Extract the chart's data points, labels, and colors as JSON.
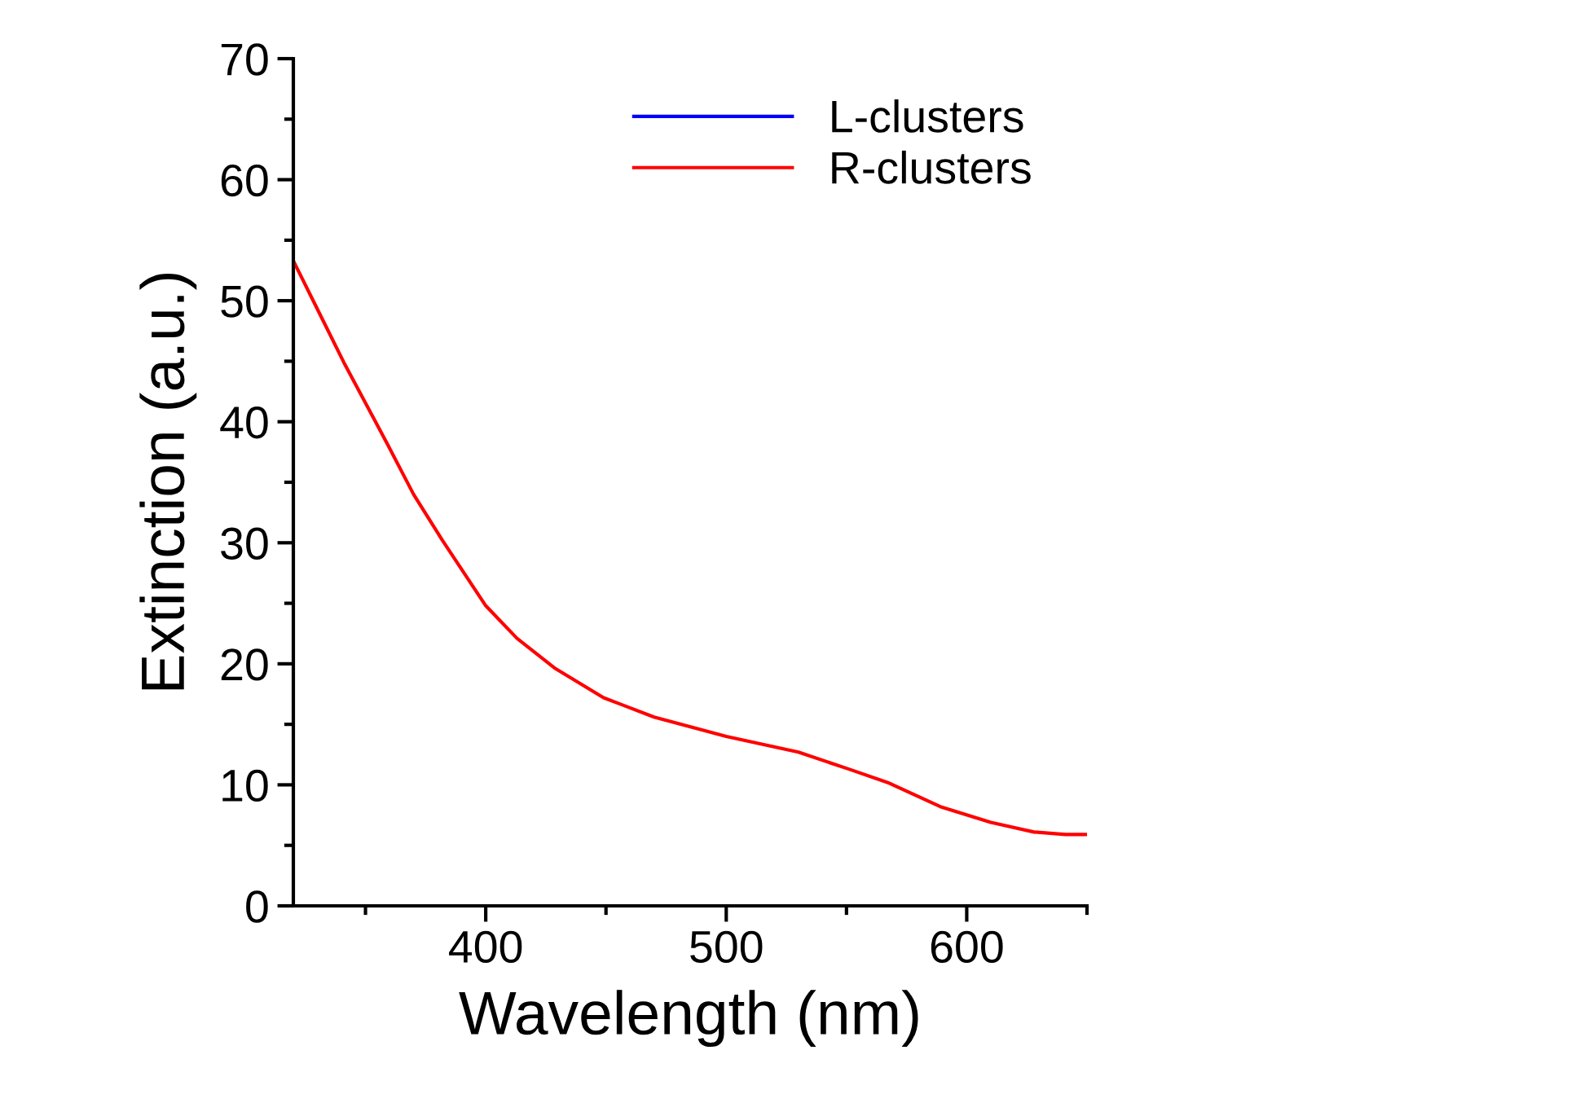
{
  "chart_data": {
    "type": "line",
    "xlabel": "Wavelength (nm)",
    "ylabel": "Extinction (a.u.)",
    "x": [
      320,
      330,
      341,
      359,
      370,
      382,
      400,
      413,
      429,
      449,
      470,
      500,
      530,
      551,
      567,
      589,
      610,
      628,
      641,
      650
    ],
    "series": [
      {
        "name": "L-clusters",
        "color": "#0000ff",
        "values": [
          null,
          null,
          null,
          null,
          null,
          null,
          null,
          null,
          null,
          null,
          null,
          null,
          null,
          null,
          null,
          null,
          null,
          null,
          null,
          null
        ]
      },
      {
        "name": "R-clusters",
        "color": "#ff0000",
        "values": [
          53.3,
          49.3,
          44.9,
          38.2,
          34.0,
          30.2,
          24.8,
          22.1,
          19.6,
          17.2,
          15.6,
          14.0,
          12.7,
          11.3,
          10.2,
          8.2,
          6.9,
          6.1,
          5.9,
          5.9
        ]
      }
    ],
    "xlim": [
      320,
      650
    ],
    "xticks": [
      {
        "value": 350,
        "label": null
      },
      400,
      {
        "value": 450,
        "label": null
      },
      500,
      {
        "value": 550,
        "label": null
      },
      600,
      {
        "value": 650,
        "label": null
      }
    ],
    "ylim": [
      0,
      70
    ],
    "yticks": [
      0,
      {
        "value": 5,
        "label": null
      },
      10,
      {
        "value": 15,
        "label": null
      },
      20,
      {
        "value": 25,
        "label": null
      },
      30,
      {
        "value": 35,
        "label": null
      },
      40,
      {
        "value": 45,
        "label": null
      },
      50,
      {
        "value": 55,
        "label": null
      },
      60,
      {
        "value": 65,
        "label": null
      },
      70
    ],
    "grid": false,
    "legend": "top",
    "line_style": "solid",
    "marker": "none"
  }
}
